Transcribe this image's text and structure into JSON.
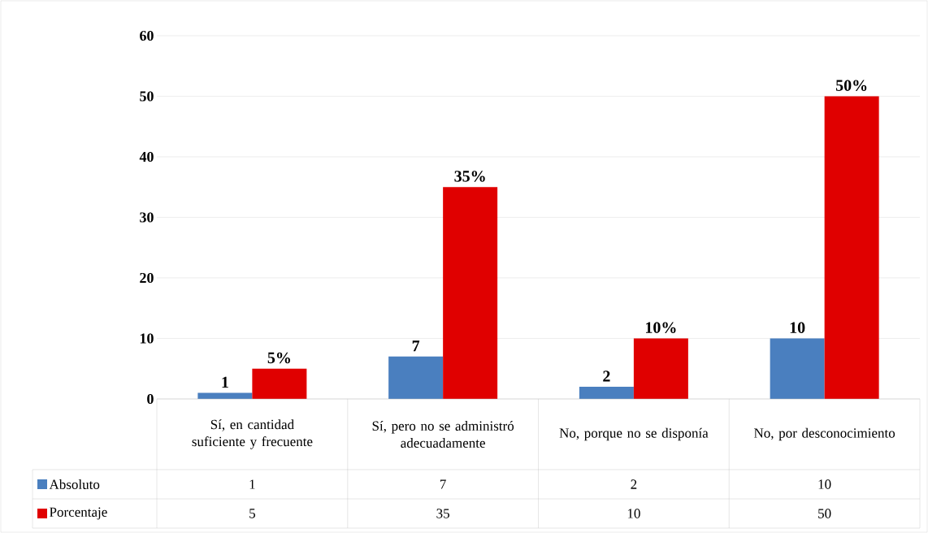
{
  "chart_data": {
    "type": "bar",
    "categories": [
      "Sí, en cantidad suficiente y frecuente",
      "Sí, pero no se administró adecuadamente",
      "No, porque no se disponía",
      "No, por desconocimiento"
    ],
    "series": [
      {
        "name": "Absoluto",
        "color": "#4a7fbf",
        "values": [
          1,
          7,
          2,
          10
        ],
        "value_labels": [
          "1",
          "7",
          "2",
          "10"
        ]
      },
      {
        "name": "Porcentaje",
        "color": "#e00000",
        "values": [
          5,
          35,
          10,
          50
        ],
        "value_labels": [
          "5",
          "35",
          "10",
          "50"
        ]
      }
    ],
    "annotations": [
      {
        "text": "5%",
        "x": "Sí, en cantidad suficiente y frecuente",
        "y": 5
      },
      {
        "text": "35%",
        "x": "Sí, pero no se administró adecuadamente",
        "y": 35
      },
      {
        "text": "10%",
        "x": "No, porque no se disponía",
        "y": 10
      },
      {
        "text": "50%",
        "x": "No, por desconocimiento",
        "y": 50
      }
    ],
    "ylim": [
      0,
      60
    ],
    "yticks": [
      0,
      10,
      20,
      30,
      40,
      50,
      60
    ],
    "grid": "y",
    "legend": "bottom",
    "data_labels": true
  }
}
